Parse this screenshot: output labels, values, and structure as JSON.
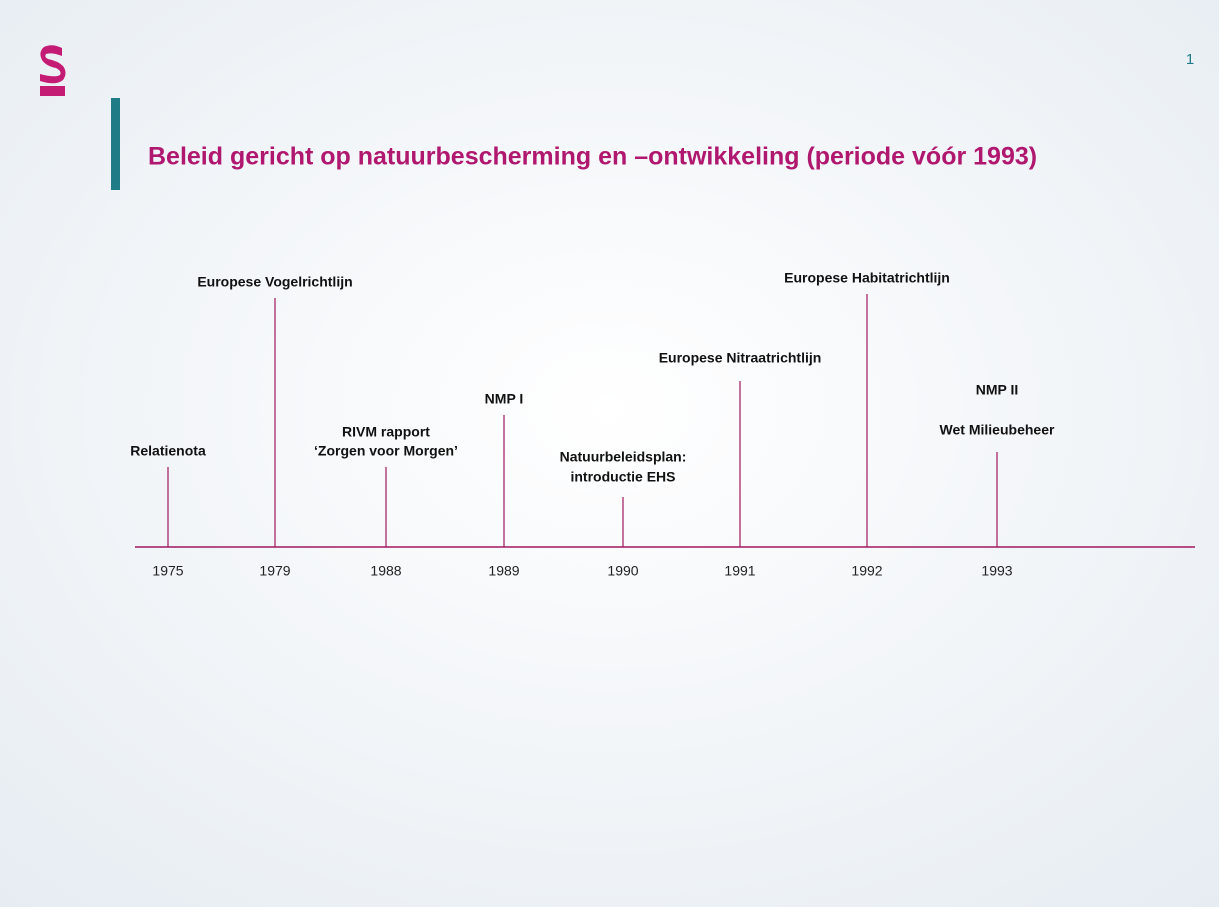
{
  "page_number": "1",
  "title": "Beleid gericht op natuurbescherming en –ontwikkeling (periode vóór 1993)",
  "timeline": {
    "events": [
      {
        "year": "1975",
        "label": [
          "Relatienota"
        ]
      },
      {
        "year": "1979",
        "label": [
          "Europese Vogelrichtlijn"
        ]
      },
      {
        "year": "1988",
        "label": [
          "RIVM rapport",
          "‘Zorgen voor Morgen’"
        ]
      },
      {
        "year": "1989",
        "label": [
          "NMP I"
        ]
      },
      {
        "year": "1990",
        "label": [
          "Natuurbeleidsplan:",
          "introductie EHS"
        ]
      },
      {
        "year": "1991",
        "label": [
          "Europese Nitraatrichtlijn"
        ]
      },
      {
        "year": "1992",
        "label": [
          "Europese Habitatrichtlijn"
        ]
      },
      {
        "year": "1993",
        "label": [
          "NMP II",
          "Wet Milieubeheer"
        ]
      }
    ]
  }
}
